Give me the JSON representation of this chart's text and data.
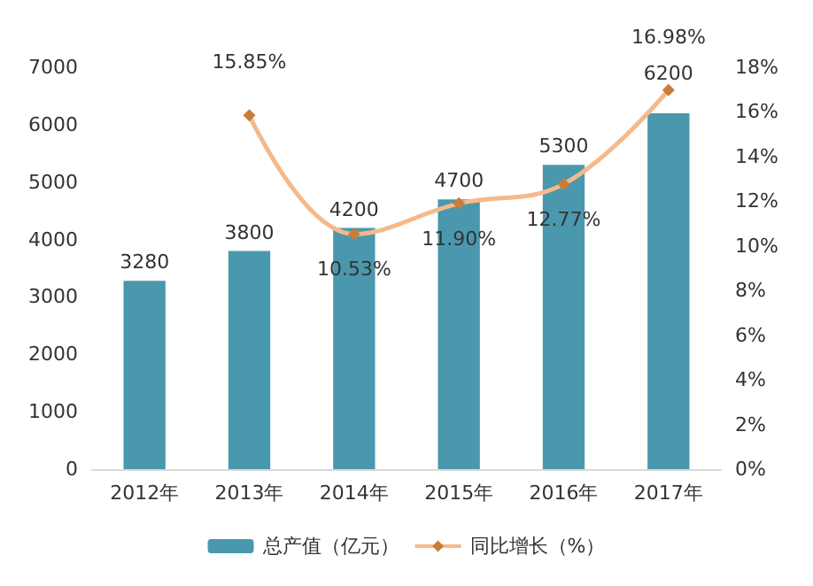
{
  "chart_data": {
    "type": "bar",
    "categories": [
      "2012年",
      "2013年",
      "2014年",
      "2015年",
      "2016年",
      "2017年"
    ],
    "series": [
      {
        "name": "总产值（亿元）",
        "color": "#4a98ad",
        "values": [
          3280,
          3800,
          4200,
          4700,
          5300,
          6200
        ],
        "value_labels": [
          "3280",
          "3800",
          "4200",
          "4700",
          "5300",
          "6200"
        ]
      },
      {
        "name": "同比增长（%）",
        "type": "line",
        "axis": "y2",
        "color": "#f5b98a",
        "marker": "diamond",
        "values": [
          null,
          15.85,
          10.53,
          11.9,
          12.77,
          16.98
        ],
        "value_labels": [
          null,
          "15.85%",
          "10.53%",
          "11.90%",
          "12.77%",
          "16.98%"
        ]
      }
    ],
    "ylim": [
      0,
      7000
    ],
    "yticks": [
      0,
      1000,
      2000,
      3000,
      4000,
      5000,
      6000,
      7000
    ],
    "y2lim": [
      0,
      18
    ],
    "y2ticks": [
      {
        "value": 0,
        "label": "0%"
      },
      {
        "value": 2,
        "label": "2%"
      },
      {
        "value": 4,
        "label": "4%"
      },
      {
        "value": 6,
        "label": "6%"
      },
      {
        "value": 8,
        "label": "8%"
      },
      {
        "value": 10,
        "label": "10%"
      },
      {
        "value": 12,
        "label": "12%"
      },
      {
        "value": 14,
        "label": "14%"
      },
      {
        "value": 16,
        "label": "16%"
      },
      {
        "value": 18,
        "label": "18%"
      }
    ],
    "grid": false,
    "legend": "bottom"
  }
}
